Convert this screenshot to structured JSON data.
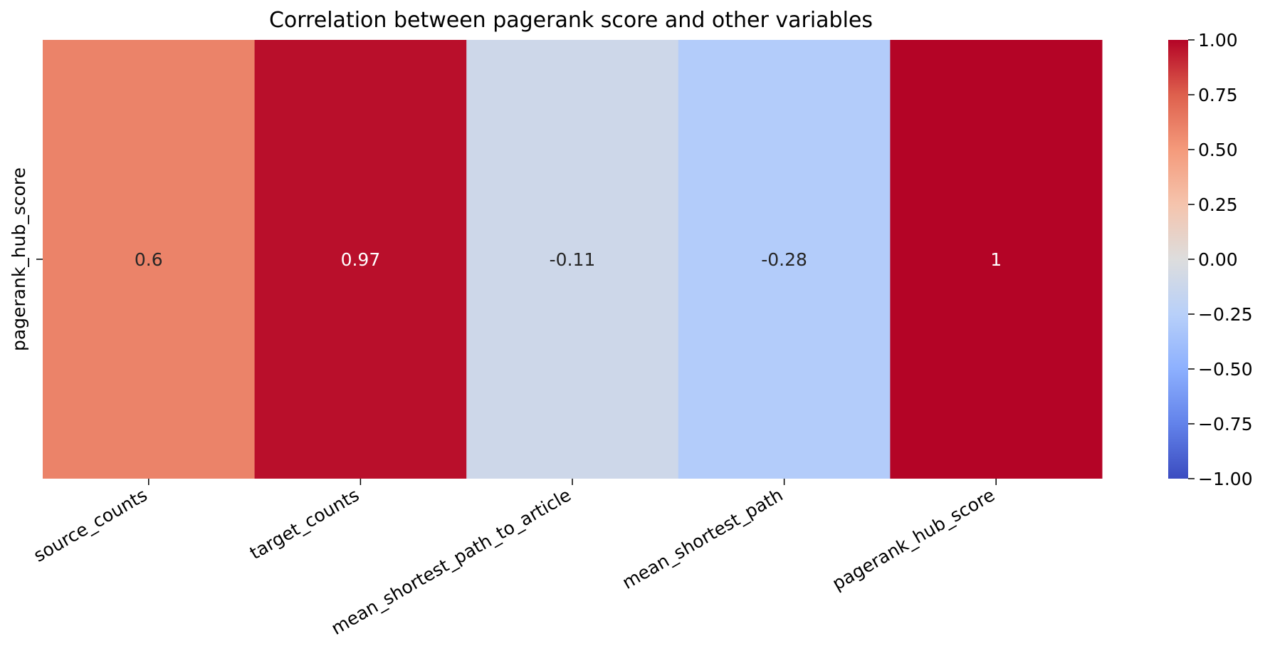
{
  "chart_data": {
    "type": "heatmap",
    "title": "Correlation between pagerank score and other variables",
    "xlabel": "",
    "ylabel": "",
    "x_categories": [
      "source_counts",
      "target_counts",
      "mean_shortest_path_to_article",
      "mean_shortest_path",
      "pagerank_hub_score"
    ],
    "y_categories": [
      "pagerank_hub_score"
    ],
    "values": [
      [
        0.6,
        0.97,
        -0.11,
        -0.28,
        1
      ]
    ],
    "annotations": [
      [
        "0.6",
        "0.97",
        "-0.11",
        "-0.28",
        "1"
      ]
    ],
    "colormap": "coolwarm",
    "vmin": -1,
    "vmax": 1,
    "colorbar": {
      "ticks": [
        1.0,
        0.75,
        0.5,
        0.25,
        0.0,
        -0.25,
        -0.5,
        -0.75,
        -1.0
      ],
      "tick_labels": [
        "1.00",
        "0.75",
        "0.50",
        "0.25",
        "0.00",
        "−0.25",
        "−0.50",
        "−0.75",
        "−1.00"
      ]
    },
    "grid": false,
    "legend": "colorbar-right"
  }
}
